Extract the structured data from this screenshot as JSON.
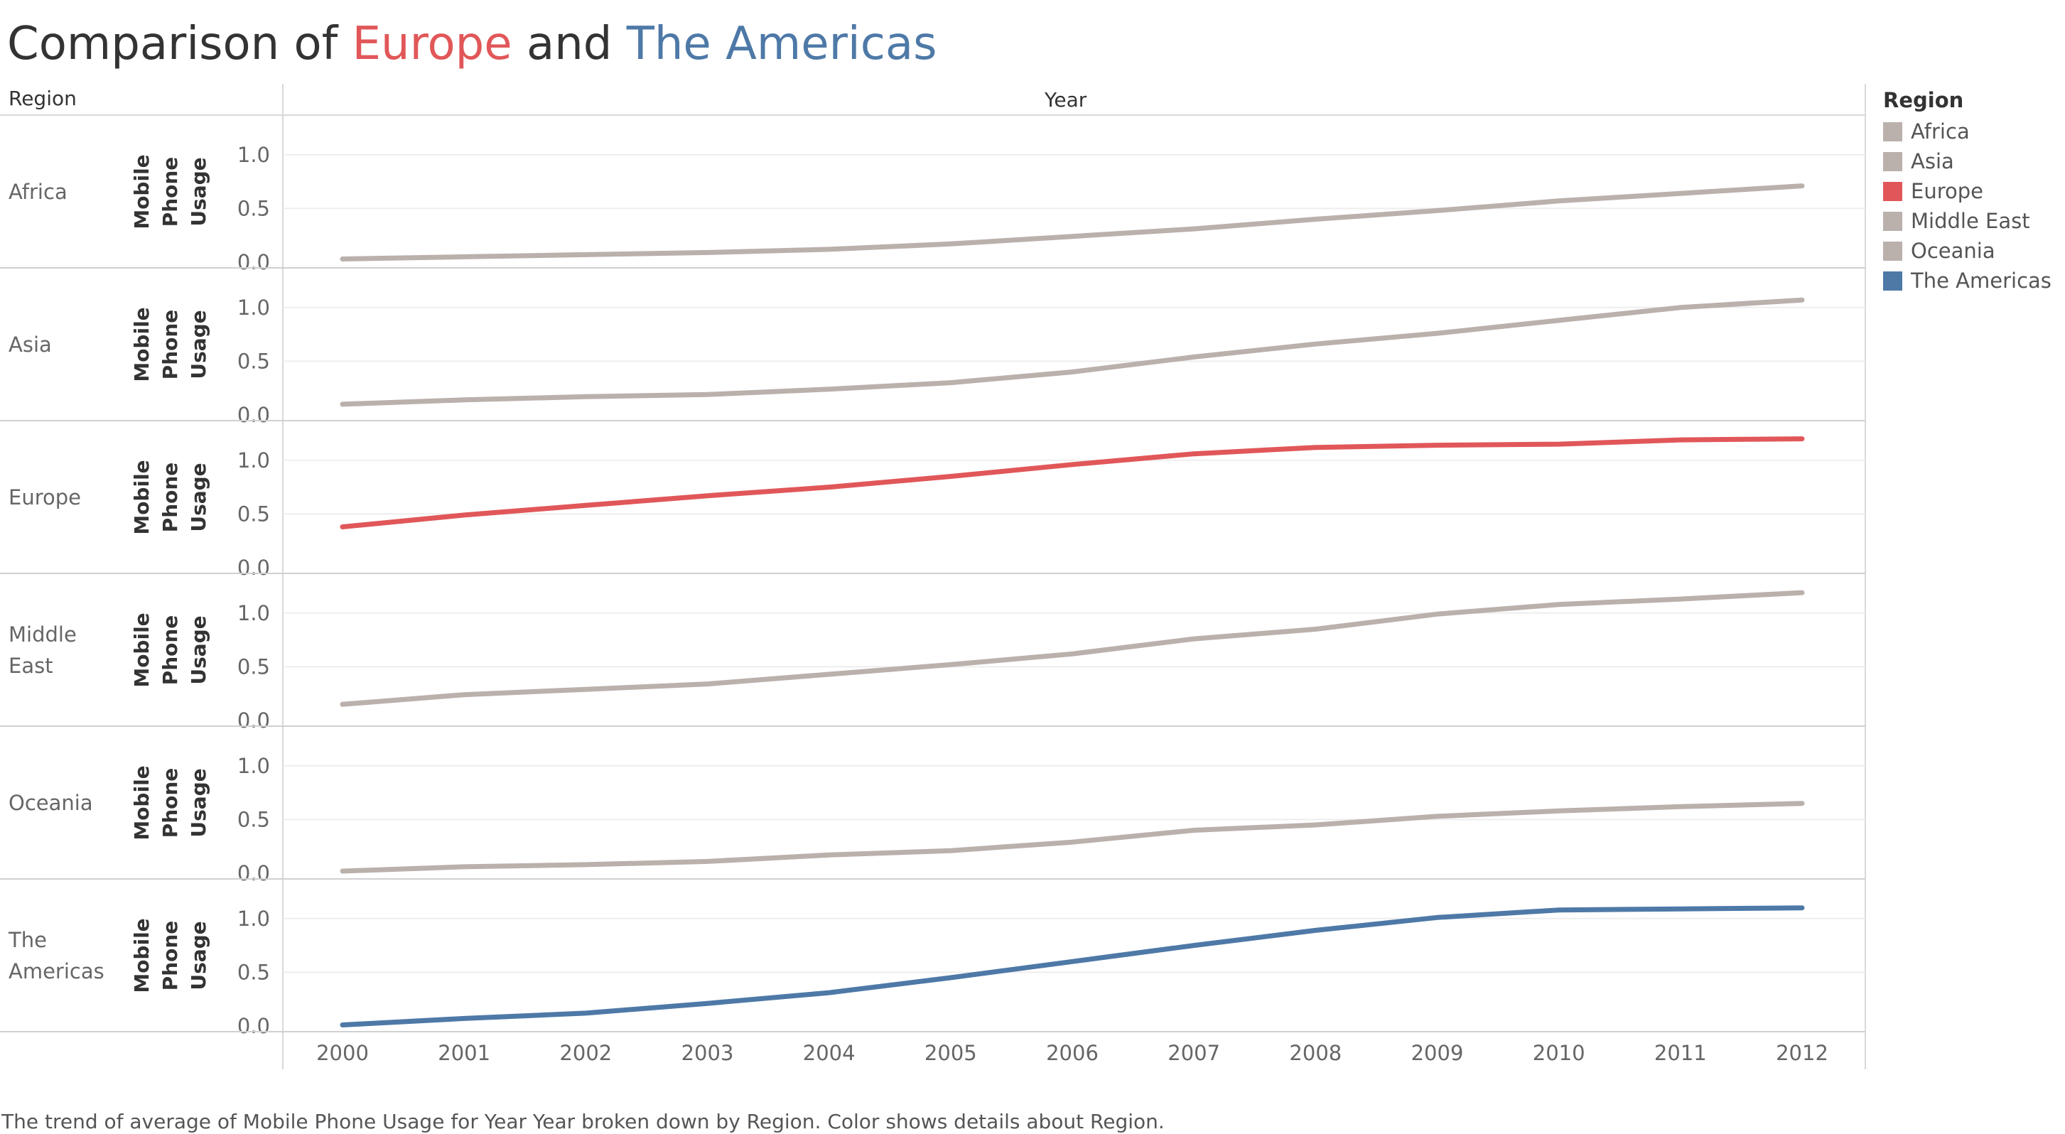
{
  "title": {
    "prefix": "Comparison of ",
    "highlight1": "Europe",
    "middle": " and ",
    "highlight2": "The Americas"
  },
  "headers": {
    "region": "Region",
    "year": "Year"
  },
  "caption": "The trend of average of Mobile Phone Usage for Year Year broken down by Region.  Color shows details about Region.",
  "legend": {
    "title": "Region",
    "items": [
      {
        "label": "Africa",
        "color": "#bab0ac"
      },
      {
        "label": "Asia",
        "color": "#bab0ac"
      },
      {
        "label": "Europe",
        "color": "#e15759"
      },
      {
        "label": "Middle East",
        "color": "#bab0ac"
      },
      {
        "label": "Oceania",
        "color": "#bab0ac"
      },
      {
        "label": "The Americas",
        "color": "#4e79a7"
      }
    ]
  },
  "chart_data": {
    "type": "line",
    "ylabel": "Mobile Phone Usage",
    "xlabel": "Year",
    "x": [
      "2000",
      "2001",
      "2002",
      "2003",
      "2004",
      "2005",
      "2006",
      "2007",
      "2008",
      "2009",
      "2010",
      "2011",
      "2012"
    ],
    "yticks": [
      "0.0",
      "0.5",
      "1.0"
    ],
    "ylim": [
      0,
      1.25
    ],
    "grid": true,
    "legend_position": "right",
    "series": [
      {
        "name": "Africa",
        "label": "Africa",
        "color": "#bab0ac",
        "values": [
          0.03,
          0.05,
          0.07,
          0.09,
          0.12,
          0.17,
          0.24,
          0.31,
          0.4,
          0.48,
          0.57,
          0.64,
          0.71
        ]
      },
      {
        "name": "Asia",
        "label": "Asia",
        "color": "#bab0ac",
        "values": [
          0.1,
          0.14,
          0.17,
          0.19,
          0.24,
          0.3,
          0.4,
          0.54,
          0.66,
          0.76,
          0.88,
          1.0,
          1.07
        ]
      },
      {
        "name": "Europe",
        "label": "Europe",
        "color": "#e15759",
        "values": [
          0.38,
          0.49,
          0.58,
          0.67,
          0.75,
          0.85,
          0.96,
          1.06,
          1.12,
          1.14,
          1.15,
          1.19,
          1.2
        ]
      },
      {
        "name": "Middle East",
        "label": "Middle\nEast",
        "color": "#bab0ac",
        "values": [
          0.15,
          0.24,
          0.29,
          0.34,
          0.43,
          0.52,
          0.62,
          0.76,
          0.85,
          0.99,
          1.08,
          1.13,
          1.19
        ]
      },
      {
        "name": "Oceania",
        "label": "Oceania",
        "color": "#bab0ac",
        "values": [
          0.02,
          0.06,
          0.08,
          0.11,
          0.17,
          0.21,
          0.29,
          0.4,
          0.45,
          0.53,
          0.58,
          0.62,
          0.65
        ]
      },
      {
        "name": "The Americas",
        "label": "The\nAmericas",
        "color": "#4e79a7",
        "values": [
          0.01,
          0.07,
          0.12,
          0.21,
          0.31,
          0.45,
          0.6,
          0.75,
          0.89,
          1.01,
          1.08,
          1.09,
          1.1
        ]
      }
    ]
  }
}
